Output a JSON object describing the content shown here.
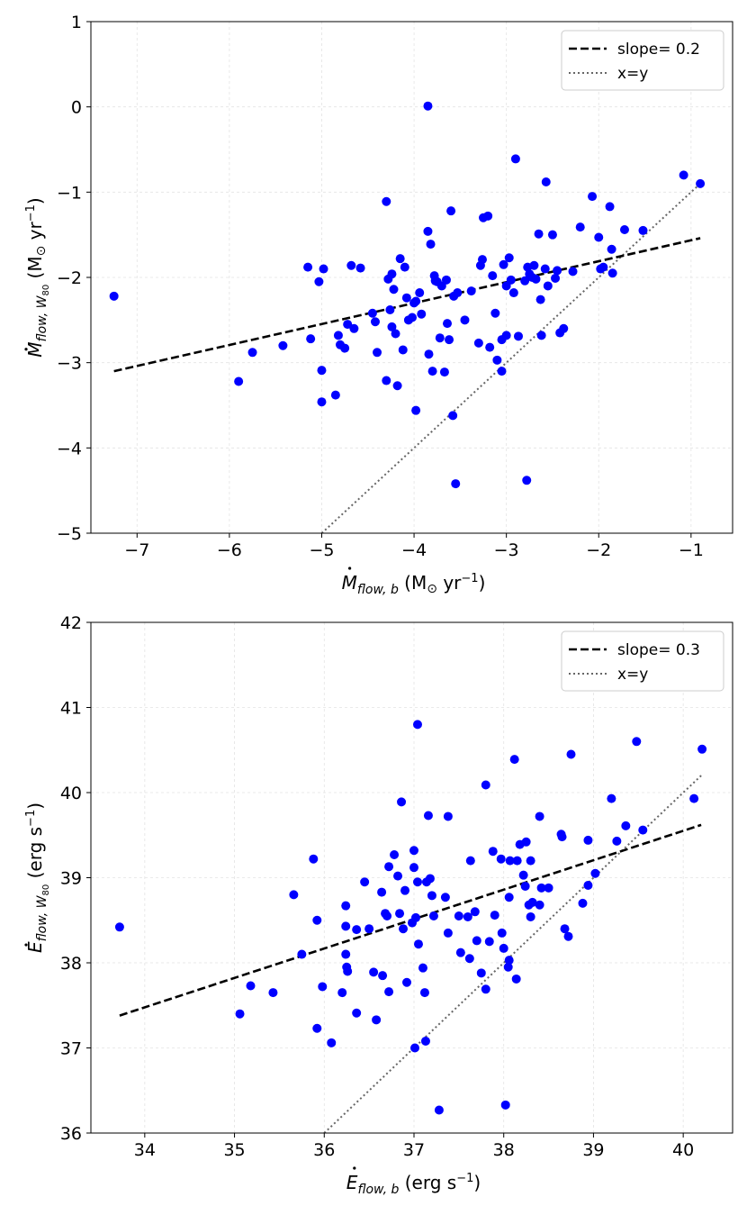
{
  "chart_data": [
    {
      "type": "scatter",
      "panel": "top",
      "xlim": [
        -7.5,
        -0.55
      ],
      "ylim": [
        -5,
        1
      ],
      "xticks": [
        -7,
        -6,
        -5,
        -4,
        -3,
        -2,
        -1
      ],
      "yticks": [
        -5,
        -4,
        -3,
        -2,
        -1,
        0,
        1
      ],
      "xlabel": {
        "sym": "M",
        "sub": "flow, b",
        "unit": "(M",
        "unitsub": "⊙",
        "unitrest": " yr",
        "sup": "−1",
        "close": ")"
      },
      "ylabel": {
        "sym": "M",
        "sub": "flow, W",
        "subsub": "80",
        "unit": "(M",
        "unitsub": "⊙",
        "unitrest": " yr",
        "sup": "−1",
        "close": ")"
      },
      "grid": true,
      "legend_position": "top-right",
      "legend": [
        "slope= 0.2",
        "x=y"
      ],
      "fit_line": {
        "x": [
          -7.25,
          -0.9
        ],
        "y": [
          -3.1,
          -1.54
        ]
      },
      "identity_line": {
        "x": [
          -5.0,
          -0.9
        ],
        "y": [
          -5.0,
          -0.9
        ]
      },
      "points": [
        [
          -7.25,
          -2.22
        ],
        [
          -5.9,
          -3.22
        ],
        [
          -5.75,
          -2.88
        ],
        [
          -5.42,
          -2.8
        ],
        [
          -5.15,
          -1.88
        ],
        [
          -5.12,
          -2.72
        ],
        [
          -5.03,
          -2.05
        ],
        [
          -5.0,
          -3.09
        ],
        [
          -5.0,
          -3.46
        ],
        [
          -4.98,
          -1.9
        ],
        [
          -4.85,
          -3.38
        ],
        [
          -4.82,
          -2.68
        ],
        [
          -4.8,
          -2.79
        ],
        [
          -4.75,
          -2.83
        ],
        [
          -4.72,
          -2.55
        ],
        [
          -4.68,
          -1.86
        ],
        [
          -4.65,
          -2.6
        ],
        [
          -4.58,
          -1.89
        ],
        [
          -4.45,
          -2.42
        ],
        [
          -4.42,
          -2.52
        ],
        [
          -4.4,
          -2.88
        ],
        [
          -4.3,
          -1.11
        ],
        [
          -4.3,
          -3.21
        ],
        [
          -4.28,
          -2.02
        ],
        [
          -4.26,
          -2.38
        ],
        [
          -4.24,
          -1.96
        ],
        [
          -4.24,
          -2.58
        ],
        [
          -4.22,
          -2.14
        ],
        [
          -4.2,
          -2.66
        ],
        [
          -4.18,
          -3.27
        ],
        [
          -4.15,
          -1.78
        ],
        [
          -4.12,
          -2.85
        ],
        [
          -4.1,
          -1.88
        ],
        [
          -4.08,
          -2.24
        ],
        [
          -4.06,
          -2.5
        ],
        [
          -4.02,
          -2.47
        ],
        [
          -4.0,
          -2.3
        ],
        [
          -3.98,
          -3.56
        ],
        [
          -3.98,
          -2.28
        ],
        [
          -3.94,
          -2.18
        ],
        [
          -3.92,
          -2.43
        ],
        [
          -3.85,
          -1.46
        ],
        [
          -3.85,
          0.01
        ],
        [
          -3.84,
          -2.9
        ],
        [
          -3.82,
          -1.61
        ],
        [
          -3.8,
          -3.1
        ],
        [
          -3.78,
          -1.98
        ],
        [
          -3.77,
          -2.04
        ],
        [
          -3.75,
          -2.05
        ],
        [
          -3.72,
          -2.71
        ],
        [
          -3.7,
          -2.1
        ],
        [
          -3.67,
          -3.11
        ],
        [
          -3.65,
          -2.03
        ],
        [
          -3.64,
          -2.54
        ],
        [
          -3.62,
          -2.73
        ],
        [
          -3.6,
          -1.22
        ],
        [
          -3.58,
          -3.62
        ],
        [
          -3.57,
          -2.22
        ],
        [
          -3.55,
          -4.42
        ],
        [
          -3.53,
          -2.18
        ],
        [
          -3.45,
          -2.5
        ],
        [
          -3.38,
          -2.16
        ],
        [
          -3.3,
          -2.77
        ],
        [
          -3.28,
          -1.86
        ],
        [
          -3.26,
          -1.79
        ],
        [
          -3.25,
          -1.3
        ],
        [
          -3.2,
          -1.28
        ],
        [
          -3.18,
          -2.82
        ],
        [
          -3.15,
          -1.98
        ],
        [
          -3.12,
          -2.42
        ],
        [
          -3.1,
          -2.97
        ],
        [
          -3.05,
          -3.1
        ],
        [
          -3.05,
          -2.73
        ],
        [
          -3.03,
          -1.85
        ],
        [
          -3.0,
          -2.1
        ],
        [
          -3.0,
          -2.68
        ],
        [
          -2.97,
          -1.77
        ],
        [
          -2.95,
          -2.03
        ],
        [
          -2.92,
          -2.18
        ],
        [
          -2.9,
          -0.61
        ],
        [
          -2.87,
          -2.69
        ],
        [
          -2.8,
          -2.04
        ],
        [
          -2.78,
          -4.38
        ],
        [
          -2.77,
          -1.88
        ],
        [
          -2.75,
          -1.96
        ],
        [
          -2.72,
          -2.0
        ],
        [
          -2.7,
          -1.86
        ],
        [
          -2.68,
          -2.02
        ],
        [
          -2.65,
          -1.49
        ],
        [
          -2.63,
          -2.26
        ],
        [
          -2.62,
          -2.68
        ],
        [
          -2.58,
          -1.9
        ],
        [
          -2.57,
          -0.88
        ],
        [
          -2.55,
          -2.1
        ],
        [
          -2.5,
          -1.5
        ],
        [
          -2.47,
          -2.01
        ],
        [
          -2.45,
          -1.92
        ],
        [
          -2.42,
          -2.65
        ],
        [
          -2.38,
          -2.6
        ],
        [
          -2.28,
          -1.93
        ],
        [
          -2.2,
          -1.41
        ],
        [
          -2.07,
          -1.05
        ],
        [
          -2.0,
          -1.53
        ],
        [
          -1.98,
          -1.9
        ],
        [
          -1.95,
          -1.88
        ],
        [
          -1.88,
          -1.17
        ],
        [
          -1.86,
          -1.67
        ],
        [
          -1.85,
          -1.95
        ],
        [
          -1.72,
          -1.44
        ],
        [
          -1.52,
          -1.45
        ],
        [
          -1.08,
          -0.8
        ],
        [
          -0.9,
          -0.9
        ]
      ]
    },
    {
      "type": "scatter",
      "panel": "bottom",
      "xlim": [
        33.4,
        40.55
      ],
      "ylim": [
        36,
        42
      ],
      "xticks": [
        34,
        35,
        36,
        37,
        38,
        39,
        40
      ],
      "yticks": [
        36,
        37,
        38,
        39,
        40,
        41,
        42
      ],
      "xlabel": {
        "sym": "E",
        "sub": "flow, b",
        "unit": "(erg s",
        "sup": "−1",
        "close": ")"
      },
      "ylabel": {
        "sym": "E",
        "sub": "flow, W",
        "subsub": "80",
        "unit": "(erg s",
        "sup": "−1",
        "close": ")"
      },
      "grid": true,
      "legend_position": "top-right",
      "legend": [
        "slope= 0.3",
        "x=y"
      ],
      "fit_line": {
        "x": [
          33.72,
          40.2
        ],
        "y": [
          37.38,
          39.62
        ]
      },
      "identity_line": {
        "x": [
          36.0,
          40.2
        ],
        "y": [
          36.0,
          40.2
        ]
      },
      "points": [
        [
          33.72,
          38.42
        ],
        [
          35.06,
          37.4
        ],
        [
          35.18,
          37.73
        ],
        [
          35.43,
          37.65
        ],
        [
          35.66,
          38.8
        ],
        [
          35.75,
          38.1
        ],
        [
          35.88,
          39.22
        ],
        [
          35.92,
          38.5
        ],
        [
          35.92,
          37.23
        ],
        [
          35.98,
          37.72
        ],
        [
          36.08,
          37.06
        ],
        [
          36.2,
          37.65
        ],
        [
          36.24,
          38.67
        ],
        [
          36.24,
          38.43
        ],
        [
          36.24,
          38.1
        ],
        [
          36.25,
          37.95
        ],
        [
          36.26,
          37.9
        ],
        [
          36.36,
          38.39
        ],
        [
          36.36,
          37.41
        ],
        [
          36.45,
          38.95
        ],
        [
          36.5,
          38.4
        ],
        [
          36.55,
          37.89
        ],
        [
          36.58,
          37.33
        ],
        [
          36.64,
          38.83
        ],
        [
          36.65,
          37.85
        ],
        [
          36.68,
          38.58
        ],
        [
          36.7,
          38.55
        ],
        [
          36.72,
          37.66
        ],
        [
          36.72,
          39.13
        ],
        [
          36.78,
          39.27
        ],
        [
          36.82,
          39.02
        ],
        [
          36.84,
          38.58
        ],
        [
          36.86,
          39.89
        ],
        [
          36.88,
          38.4
        ],
        [
          36.9,
          38.85
        ],
        [
          36.92,
          37.77
        ],
        [
          36.98,
          38.47
        ],
        [
          37.0,
          39.32
        ],
        [
          37.0,
          39.12
        ],
        [
          37.01,
          37.0
        ],
        [
          37.02,
          38.53
        ],
        [
          37.04,
          40.8
        ],
        [
          37.04,
          38.95
        ],
        [
          37.05,
          38.22
        ],
        [
          37.1,
          37.94
        ],
        [
          37.12,
          37.65
        ],
        [
          37.13,
          37.08
        ],
        [
          37.14,
          38.95
        ],
        [
          37.16,
          39.73
        ],
        [
          37.18,
          38.99
        ],
        [
          37.2,
          38.79
        ],
        [
          37.22,
          38.55
        ],
        [
          37.28,
          36.27
        ],
        [
          37.35,
          38.77
        ],
        [
          37.38,
          39.72
        ],
        [
          37.38,
          38.35
        ],
        [
          37.5,
          38.55
        ],
        [
          37.52,
          38.12
        ],
        [
          37.6,
          38.54
        ],
        [
          37.62,
          38.05
        ],
        [
          37.63,
          39.2
        ],
        [
          37.68,
          38.6
        ],
        [
          37.7,
          38.26
        ],
        [
          37.75,
          37.88
        ],
        [
          37.8,
          37.69
        ],
        [
          37.8,
          40.09
        ],
        [
          37.84,
          38.25
        ],
        [
          37.88,
          39.31
        ],
        [
          37.9,
          38.56
        ],
        [
          37.97,
          39.22
        ],
        [
          37.98,
          38.35
        ],
        [
          38.0,
          38.17
        ],
        [
          38.02,
          36.33
        ],
        [
          38.05,
          37.95
        ],
        [
          38.06,
          38.77
        ],
        [
          38.06,
          38.03
        ],
        [
          38.07,
          39.2
        ],
        [
          38.12,
          40.39
        ],
        [
          38.14,
          37.81
        ],
        [
          38.15,
          39.2
        ],
        [
          38.18,
          39.39
        ],
        [
          38.22,
          39.03
        ],
        [
          38.24,
          38.9
        ],
        [
          38.25,
          39.42
        ],
        [
          38.28,
          38.68
        ],
        [
          38.3,
          38.54
        ],
        [
          38.32,
          38.71
        ],
        [
          38.3,
          39.2
        ],
        [
          38.4,
          39.72
        ],
        [
          38.4,
          38.68
        ],
        [
          38.42,
          38.88
        ],
        [
          38.5,
          38.88
        ],
        [
          38.64,
          39.51
        ],
        [
          38.65,
          39.48
        ],
        [
          38.68,
          38.4
        ],
        [
          38.72,
          38.31
        ],
        [
          38.75,
          40.45
        ],
        [
          38.88,
          38.7
        ],
        [
          38.94,
          39.44
        ],
        [
          38.94,
          38.91
        ],
        [
          39.02,
          39.05
        ],
        [
          39.2,
          39.93
        ],
        [
          39.26,
          39.43
        ],
        [
          39.36,
          39.61
        ],
        [
          39.48,
          40.6
        ],
        [
          39.55,
          39.56
        ],
        [
          40.12,
          39.93
        ],
        [
          40.21,
          40.51
        ]
      ]
    }
  ]
}
